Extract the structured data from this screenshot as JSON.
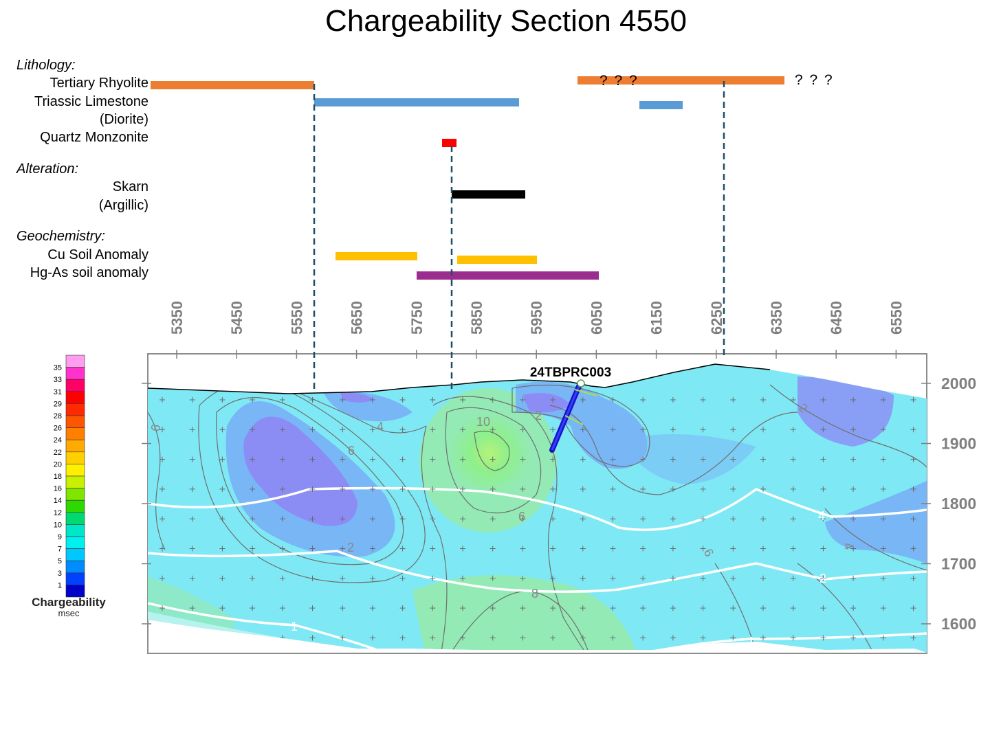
{
  "title": "Chargeability Section 4550",
  "categories": {
    "lithology": "Lithology:",
    "alteration": "Alteration:",
    "geochemistry": "Geochemistry:"
  },
  "rows": {
    "tertiary_rhyolite": "Tertiary Rhyolite",
    "triassic_limestone": "Triassic Limestone",
    "diorite": "(Diorite)",
    "quartz_monzonite": "Quartz Monzonite",
    "skarn": "Skarn",
    "argillic": "(Argillic)",
    "cu_soil": "Cu Soil Anomaly",
    "hg_as_soil": "Hg-As soil anomaly"
  },
  "question_marks": [
    "? ? ?",
    "? ? ?"
  ],
  "colors": {
    "rhyolite": "#ed7d31",
    "limestone": "#5b9bd5",
    "monzonite": "#ff0000",
    "skarn": "#000000",
    "cu_soil": "#ffc000",
    "hg_as": "#9b2d8f",
    "dashed_line": "#1f4e6b"
  },
  "section": {
    "x_ticks": [
      "5350",
      "5450",
      "5550",
      "5650",
      "5750",
      "5850",
      "5950",
      "6050",
      "6150",
      "6250",
      "6350",
      "6450",
      "6550"
    ],
    "y_ticks": [
      "2000",
      "1900",
      "1800",
      "1700",
      "1600"
    ],
    "drillhole": "24TBPRC003",
    "contour_labels_grey": [
      "6",
      "4",
      "6",
      "10",
      "2",
      "6",
      "2",
      "6",
      "8",
      "4",
      "2"
    ],
    "contour_labels_white": [
      "4",
      "2",
      "1",
      "1"
    ]
  },
  "colorbar": {
    "values": [
      "35",
      "33",
      "31",
      "29",
      "28",
      "26",
      "24",
      "22",
      "20",
      "18",
      "16",
      "14",
      "12",
      "10",
      "9",
      "7",
      "5",
      "3",
      "1"
    ],
    "title": "Chargeability",
    "unit": "msec"
  }
}
